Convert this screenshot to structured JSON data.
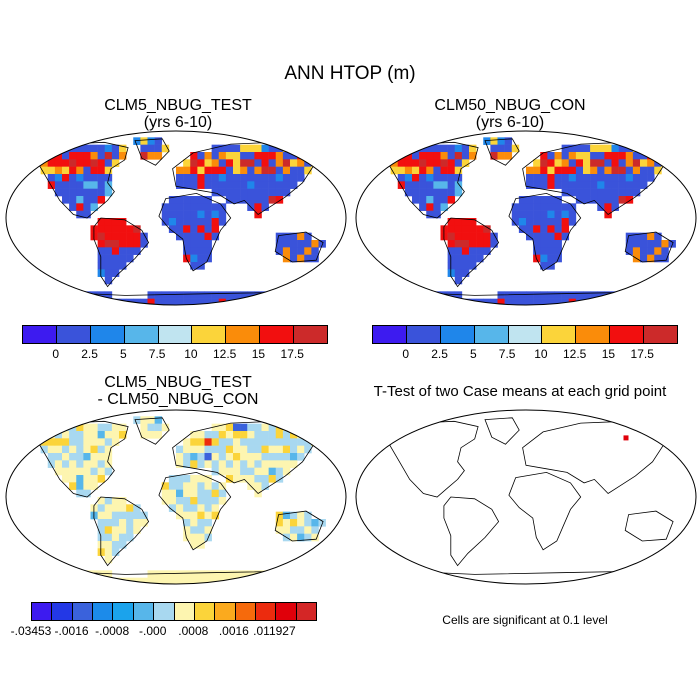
{
  "figure_title": "ANN HTOP (m)",
  "panels": [
    {
      "id": "test",
      "title_line1": "CLM5_NBUG_TEST",
      "title_line2": "(yrs 6-10)"
    },
    {
      "id": "control",
      "title_line1": "CLM50_NBUG_CON",
      "title_line2": "(yrs 6-10)"
    },
    {
      "id": "difference",
      "title_line1": "CLM5_NBUG_TEST",
      "title_line2": "- CLM50_NBUG_CON"
    },
    {
      "id": "ttest",
      "title_line1": "T-Test of two Case means at each grid point"
    }
  ],
  "significance_note": "Cells are significant at 0.1 level",
  "colorbar_main": {
    "colors": [
      "#3d1bf0",
      "#3a53da",
      "#1f86ea",
      "#57b6ea",
      "#c0e4f0",
      "#fbd43a",
      "#fa8c0a",
      "#f20f0f",
      "#cc2a2a"
    ],
    "tick_labels": [
      "0",
      "2.5",
      "5",
      "7.5",
      "10",
      "12.5",
      "15",
      "17.5"
    ]
  },
  "colorbar_diff": {
    "colors": [
      "#3d1bf0",
      "#2338e6",
      "#3a62dc",
      "#1c8bea",
      "#1ba3ec",
      "#57b6ea",
      "#a8d8f0",
      "#fdf5b0",
      "#fbd43a",
      "#fbaa1e",
      "#f66a0c",
      "#ec2b0e",
      "#e0000a",
      "#d42626"
    ],
    "tick_labels": [
      "-.03453",
      "-.0016",
      "-.0008",
      "-.000",
      ".0008",
      ".0016",
      ".011927"
    ]
  }
}
